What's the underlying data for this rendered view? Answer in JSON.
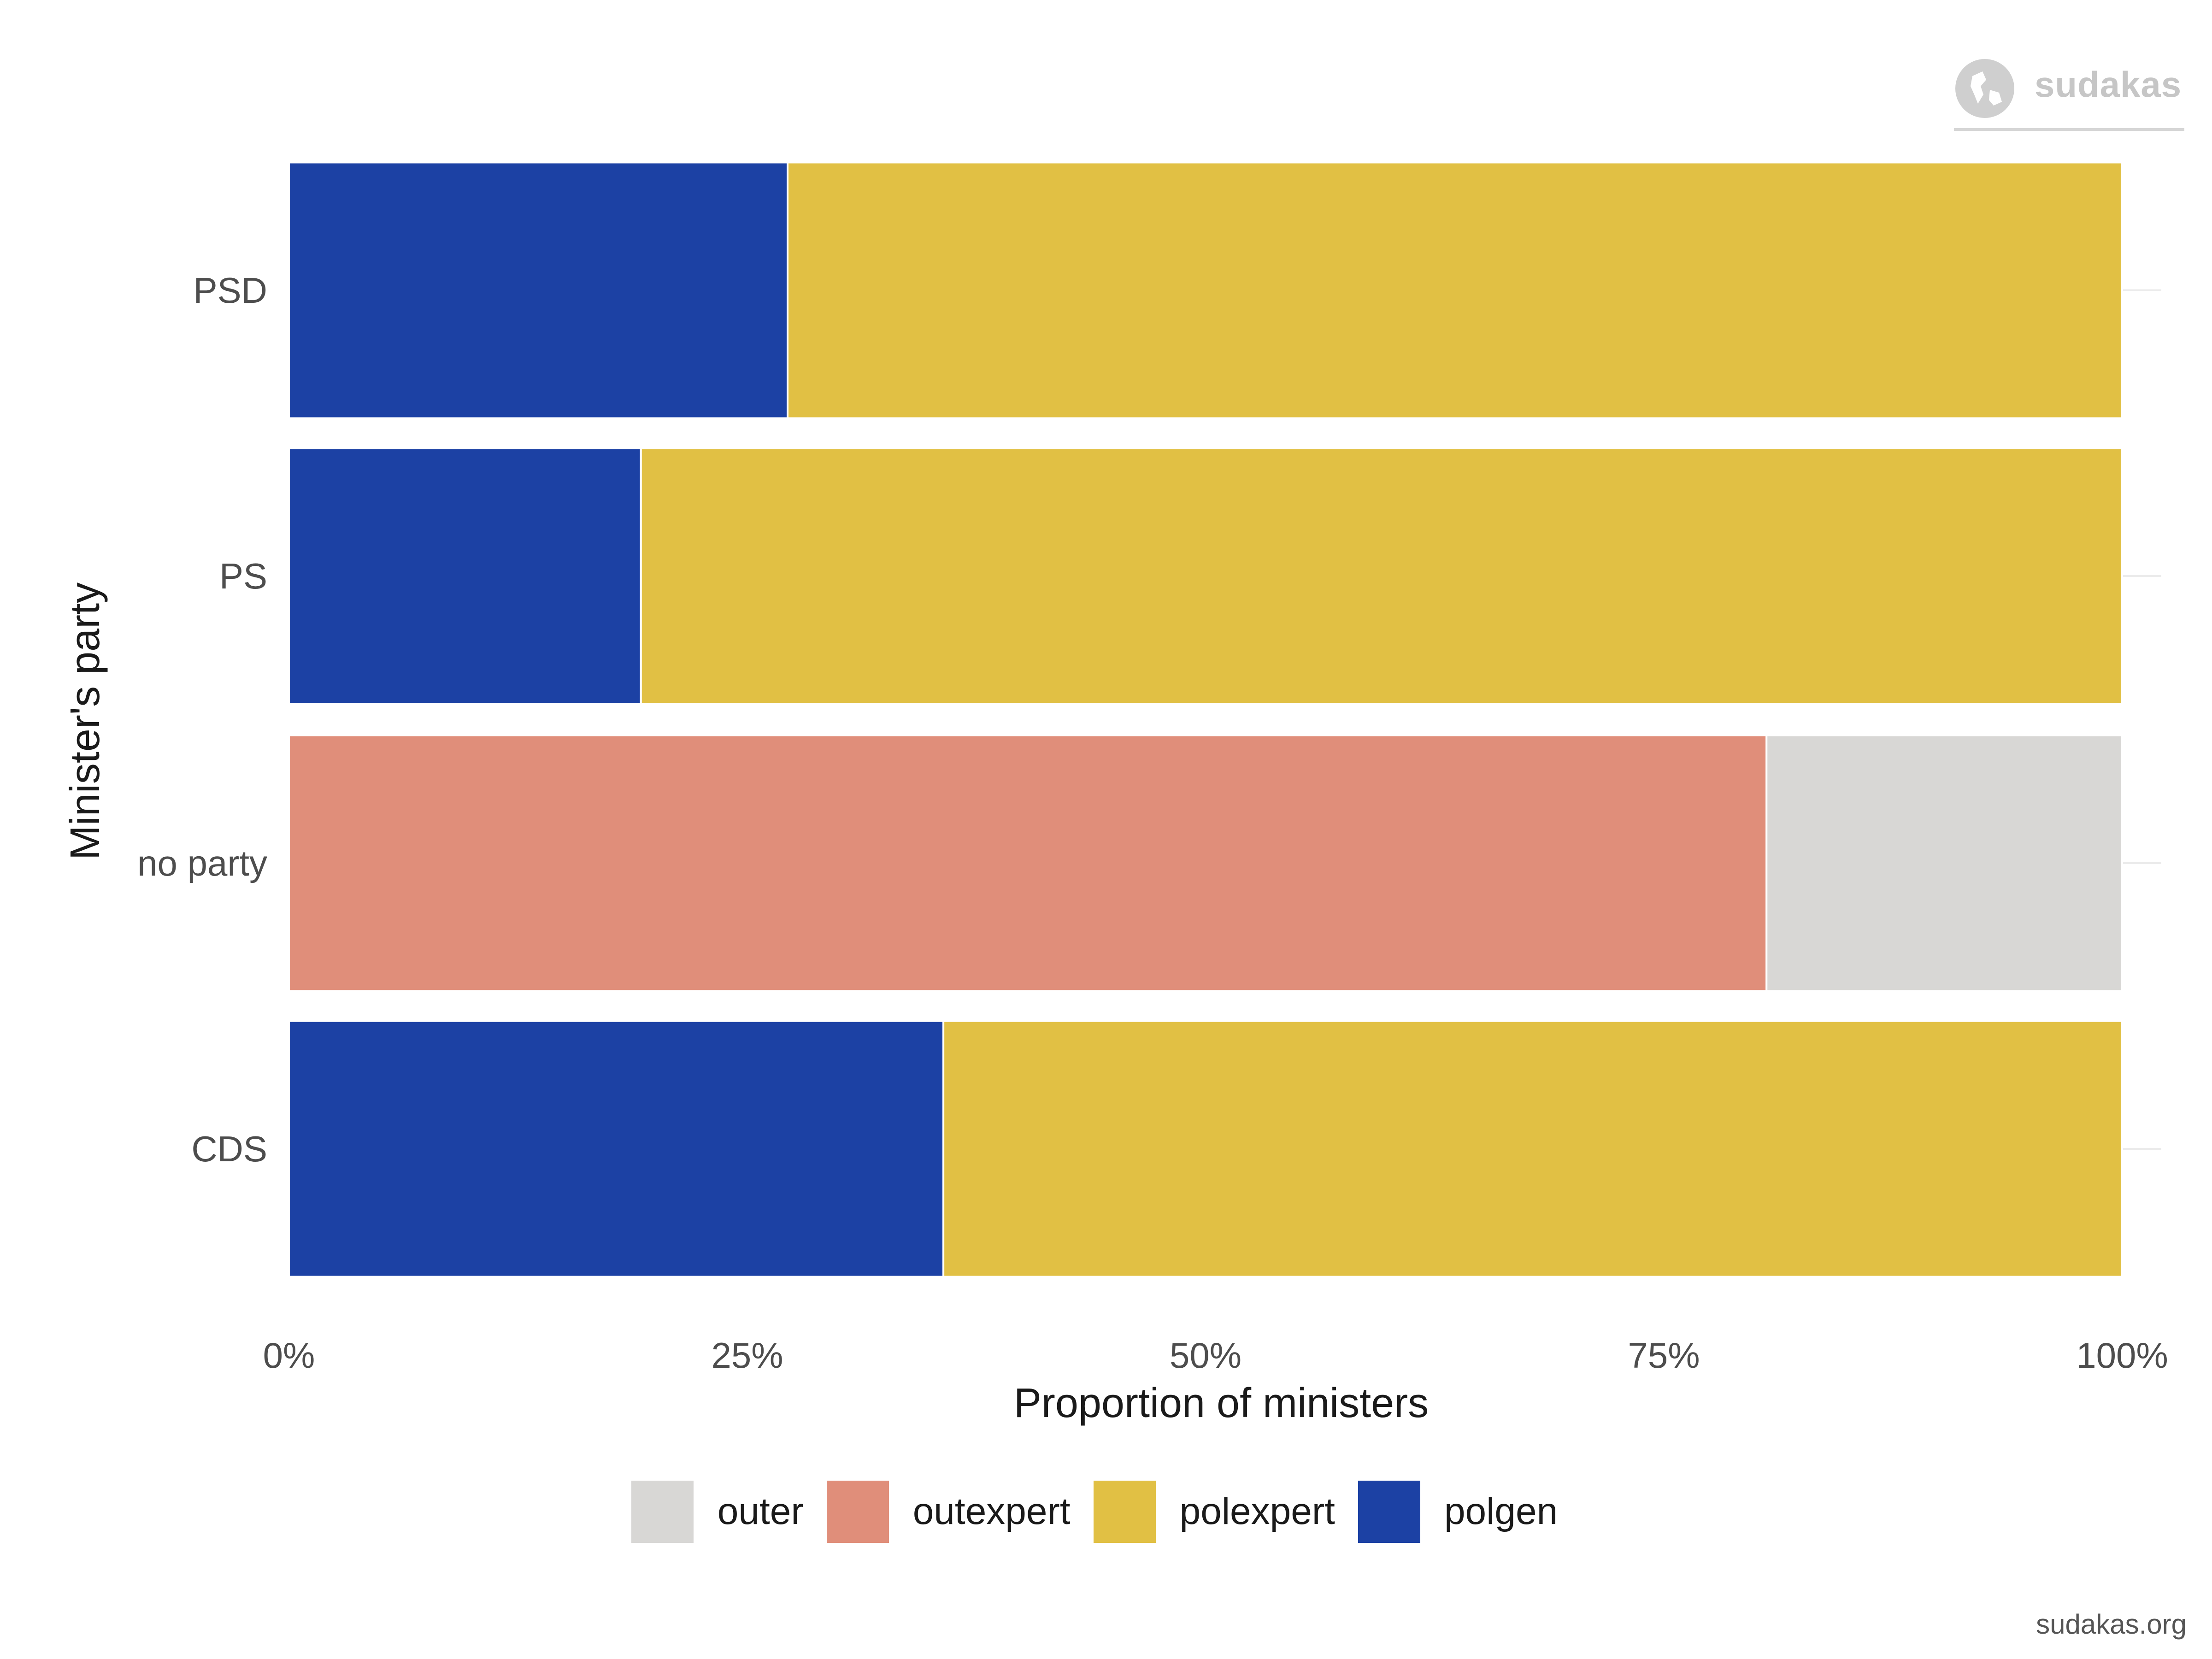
{
  "chart_data": {
    "type": "bar",
    "orientation": "horizontal",
    "stacked": "percent",
    "categories": [
      "PSD",
      "PS",
      "no party",
      "CDS"
    ],
    "series": [
      {
        "name": "outer",
        "color": "#d8d7d5",
        "values": [
          0,
          0,
          0.194,
          0
        ]
      },
      {
        "name": "outexpert",
        "color": "#e08e7a",
        "values": [
          0,
          0,
          0.806,
          0
        ]
      },
      {
        "name": "polexpert",
        "color": "#e1c044",
        "values": [
          0.728,
          0.808,
          0,
          0.643
        ]
      },
      {
        "name": "polgen",
        "color": "#1c41a4",
        "values": [
          0.272,
          0.192,
          0,
          0.357
        ]
      }
    ],
    "xlabel": "Proportion of ministers",
    "ylabel": "Minister's party",
    "xlim": [
      0,
      1
    ],
    "xticks": [
      {
        "value": 0,
        "label": "0%"
      },
      {
        "value": 0.25,
        "label": "25%"
      },
      {
        "value": 0.5,
        "label": "50%"
      },
      {
        "value": 0.75,
        "label": "75%"
      },
      {
        "value": 1,
        "label": "100%"
      }
    ],
    "legend_position": "bottom",
    "grid": true
  },
  "branding": {
    "logo_text": "sudakas",
    "footer": "sudakas.org"
  }
}
